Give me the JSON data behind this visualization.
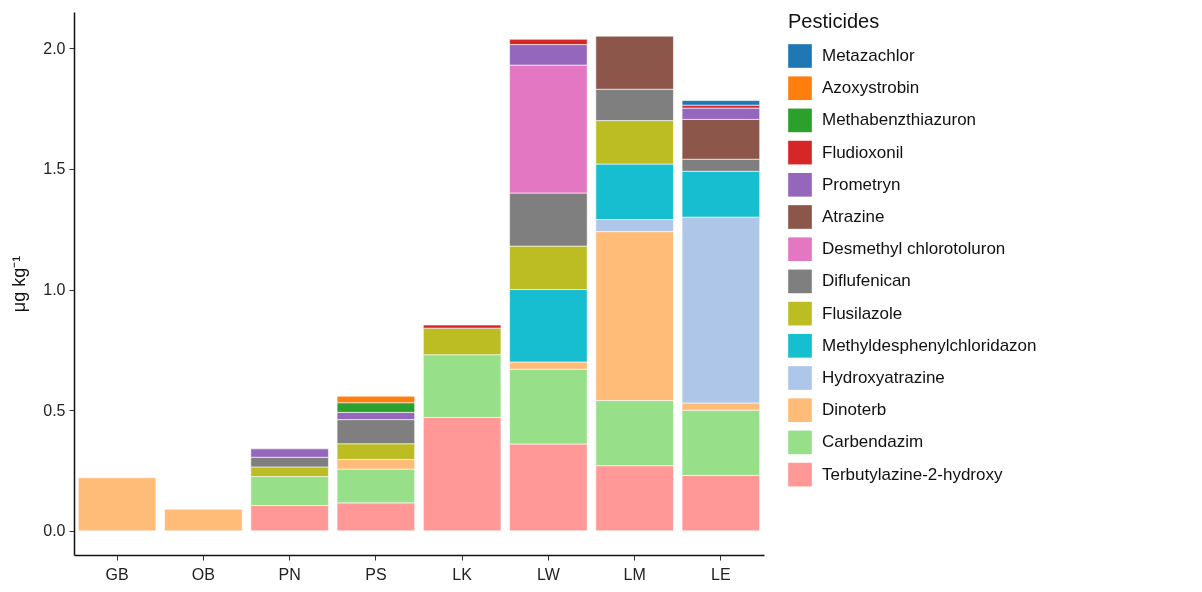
{
  "chart_data": {
    "type": "bar",
    "stacked": true,
    "ylabel": "μg kg⁻¹",
    "legend_title": "Pesticides",
    "legend": "right",
    "grid": false,
    "categories": [
      "GB",
      "OB",
      "PN",
      "PS",
      "LK",
      "LW",
      "LM",
      "LE"
    ],
    "ylim": [
      -0.1,
      2.15
    ],
    "yticks": [
      {
        "value": 0,
        "label": "0.0"
      },
      {
        "value": 0.5,
        "label": "0.5"
      },
      {
        "value": 1,
        "label": "1.0"
      },
      {
        "value": 1.5,
        "label": "1.5"
      },
      {
        "value": 2,
        "label": "2.0"
      }
    ],
    "series": [
      {
        "name": "Terbutylazine-2-hydroxy",
        "color": "#ff9896",
        "values": [
          null,
          null,
          0.105,
          0.116,
          0.47,
          0.36,
          0.27,
          0.23
        ]
      },
      {
        "name": "Carbendazim",
        "color": "#98df8a",
        "values": [
          null,
          null,
          0.12,
          0.14,
          0.26,
          0.31,
          0.27,
          0.27
        ]
      },
      {
        "name": "Dinoterb",
        "color": "#ffbb78",
        "values": [
          0.22,
          0.09,
          null,
          0.04,
          null,
          0.03,
          0.7,
          0.03
        ]
      },
      {
        "name": "Hydroxyatrazine",
        "color": "#aec7e8",
        "values": [
          null,
          null,
          null,
          null,
          null,
          null,
          0.05,
          0.77
        ]
      },
      {
        "name": "Methyldesphenylchloridazon",
        "color": "#17becf",
        "values": [
          null,
          null,
          null,
          null,
          null,
          0.3,
          0.23,
          0.19
        ]
      },
      {
        "name": "Flusilazole",
        "color": "#bcbd22",
        "values": [
          null,
          null,
          0.04,
          0.065,
          0.11,
          0.18,
          0.18,
          null
        ]
      },
      {
        "name": "Diflufenican",
        "color": "#7f7f7f",
        "values": [
          null,
          null,
          0.04,
          0.1,
          null,
          0.22,
          0.13,
          0.05
        ]
      },
      {
        "name": "Desmethyl chlorotoluron",
        "color": "#e377c2",
        "values": [
          null,
          null,
          null,
          null,
          null,
          0.53,
          null,
          null
        ]
      },
      {
        "name": "Atrazine",
        "color": "#8c564b",
        "values": [
          null,
          null,
          null,
          null,
          null,
          null,
          0.22,
          0.165
        ]
      },
      {
        "name": "Prometryn",
        "color": "#9467bd",
        "values": [
          null,
          null,
          0.035,
          0.03,
          null,
          0.085,
          null,
          0.047
        ]
      },
      {
        "name": "Fludioxonil",
        "color": "#d62728",
        "values": [
          null,
          null,
          null,
          null,
          0.013,
          0.022,
          null,
          0.012
        ]
      },
      {
        "name": "Methabenzthiazuron",
        "color": "#2ca02c",
        "values": [
          null,
          null,
          null,
          0.04,
          null,
          null,
          null,
          null
        ]
      },
      {
        "name": "Azoxystrobin",
        "color": "#ff7f0e",
        "values": [
          null,
          null,
          null,
          0.027,
          null,
          null,
          null,
          null
        ]
      },
      {
        "name": "Metazachlor",
        "color": "#1f77b4",
        "values": [
          null,
          null,
          null,
          null,
          null,
          null,
          null,
          0.019
        ]
      }
    ]
  }
}
